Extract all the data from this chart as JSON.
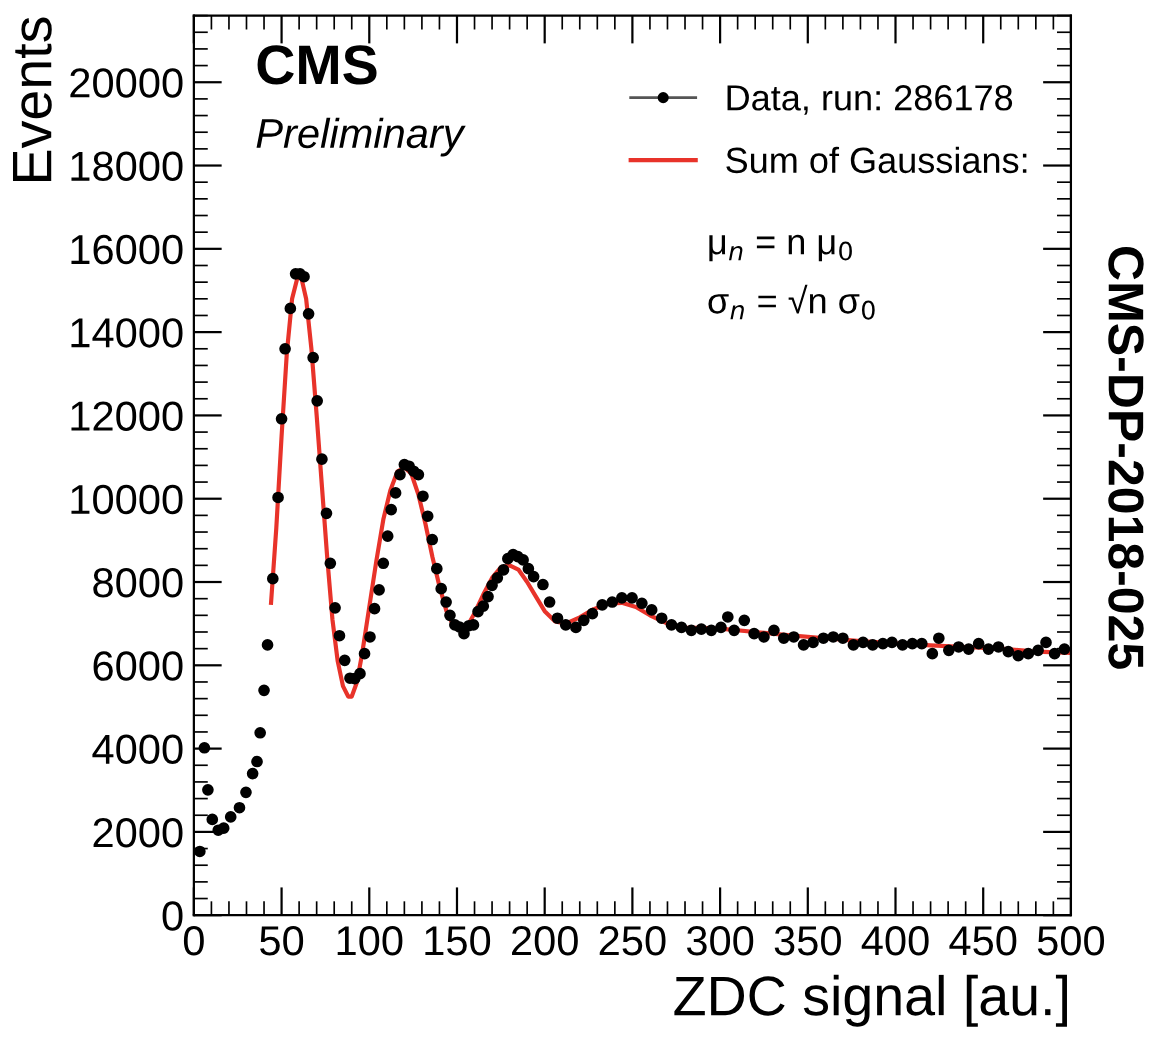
{
  "chart_data": {
    "type": "scatter",
    "xlabel": "ZDC signal [au.]",
    "ylabel": "Events",
    "xlim": [
      0,
      500
    ],
    "xticks": [
      0,
      50,
      100,
      150,
      200,
      250,
      300,
      350,
      400,
      450,
      500
    ],
    "ylim": [
      0,
      21600
    ],
    "yticks": [
      0,
      2000,
      4000,
      6000,
      8000,
      10000,
      12000,
      14000,
      16000,
      18000,
      20000
    ],
    "grid": false,
    "legend": "top right",
    "annotations": [
      "CMS",
      "Preliminary",
      "μ$_{n}$ = n μ$_{0}$",
      "σ$_{n}$ = √n σ$_{0}$",
      "CMS-DP-2018-025"
    ],
    "series": [
      {
        "name": "Data, run: 286178",
        "marker": "circle",
        "color": "#000000",
        "x": [
          3.4,
          6,
          8,
          10.5,
          13.9,
          17,
          21,
          26,
          29.7,
          33.5,
          36,
          37.8,
          40,
          42,
          45,
          48,
          50,
          52,
          55,
          58,
          60.5,
          62.8,
          65.4,
          68,
          70.3,
          73,
          75.6,
          77.8,
          80.5,
          83,
          86,
          89,
          91.7,
          94.7,
          97.3,
          100.4,
          103,
          105.6,
          108,
          110.5,
          112.5,
          115,
          117.5,
          120,
          122.7,
          125.3,
          128,
          130.6,
          133.3,
          135.9,
          138.5,
          141,
          143.8,
          146,
          148.8,
          151.4,
          154,
          156.8,
          159.4,
          162,
          165,
          167.7,
          170,
          173,
          176.5,
          179,
          182,
          184.7,
          187.7,
          190.7,
          193.7,
          199,
          202.8,
          207.3,
          212,
          217.8,
          222.3,
          227.2,
          232.8,
          238.5,
          244,
          249.8,
          255.4,
          261,
          266.7,
          272.3,
          278,
          283.6,
          289.3,
          295,
          300.5,
          304.4,
          308,
          313.8,
          319.4,
          325,
          330.7,
          336.3,
          342,
          347.6,
          353,
          358.9,
          364.5,
          370,
          376,
          381.5,
          387,
          392.8,
          398,
          404,
          409.6,
          415,
          421,
          424.7,
          430.4,
          436,
          441.7,
          447.4,
          453,
          458.7,
          464.3,
          470,
          475.7,
          481.3,
          485.8,
          490.7,
          496.3
        ],
        "values": [
          1530,
          4020,
          3010,
          2300,
          2040,
          2090,
          2360,
          2580,
          2950,
          3400,
          3690,
          4380,
          5400,
          6490,
          8080,
          10030,
          11920,
          13600,
          14570,
          15400,
          15400,
          15330,
          14440,
          13390,
          12350,
          10950,
          9650,
          8450,
          7380,
          6710,
          6120,
          5690,
          5680,
          5800,
          6280,
          6680,
          7360,
          7810,
          8450,
          9100,
          9740,
          10140,
          10580,
          10820,
          10780,
          10660,
          10580,
          10060,
          9580,
          9020,
          8320,
          7840,
          7520,
          7200,
          6970,
          6920,
          6760,
          6950,
          6970,
          7290,
          7420,
          7650,
          7920,
          8100,
          8290,
          8560,
          8660,
          8610,
          8530,
          8320,
          8130,
          7940,
          7520,
          7130,
          6970,
          6910,
          7080,
          7240,
          7450,
          7520,
          7620,
          7620,
          7490,
          7330,
          7130,
          6970,
          6910,
          6840,
          6870,
          6840,
          6910,
          7160,
          6840,
          7080,
          6760,
          6680,
          6840,
          6650,
          6680,
          6490,
          6550,
          6650,
          6680,
          6650,
          6490,
          6550,
          6490,
          6520,
          6550,
          6490,
          6520,
          6520,
          6280,
          6650,
          6360,
          6440,
          6390,
          6520,
          6390,
          6440,
          6330,
          6230,
          6280,
          6360,
          6550,
          6280,
          6390
        ]
      },
      {
        "name": "Sum of Gaussians:",
        "type": "line",
        "color": "#e8332a",
        "x": [
          44,
          47,
          50,
          53,
          56,
          59,
          61,
          64,
          67,
          70,
          73,
          76,
          79,
          82,
          85,
          88,
          90,
          93,
          96,
          100,
          104,
          108,
          112,
          116,
          120,
          124,
          128,
          132,
          136,
          140,
          144,
          148,
          152,
          156,
          160,
          165,
          170,
          175,
          180,
          185,
          190,
          195,
          200,
          206,
          212,
          220,
          228,
          236,
          244,
          252,
          260,
          270,
          280,
          290,
          300,
          320,
          340,
          360,
          380,
          400,
          420,
          440,
          460,
          480,
          500
        ],
        "values": [
          7500,
          9300,
          11500,
          13500,
          14800,
          15300,
          15350,
          14800,
          13600,
          12000,
          10300,
          8600,
          7100,
          6100,
          5500,
          5250,
          5250,
          5600,
          6300,
          7400,
          8500,
          9500,
          10200,
          10650,
          10750,
          10600,
          10100,
          9400,
          8600,
          7900,
          7300,
          6950,
          6850,
          6950,
          7250,
          7700,
          8100,
          8350,
          8400,
          8300,
          8000,
          7650,
          7300,
          7050,
          7000,
          7150,
          7350,
          7480,
          7500,
          7400,
          7200,
          7000,
          6900,
          6900,
          6880,
          6800,
          6720,
          6650,
          6580,
          6530,
          6480,
          6440,
          6400,
          6330,
          6300
        ]
      }
    ]
  }
}
